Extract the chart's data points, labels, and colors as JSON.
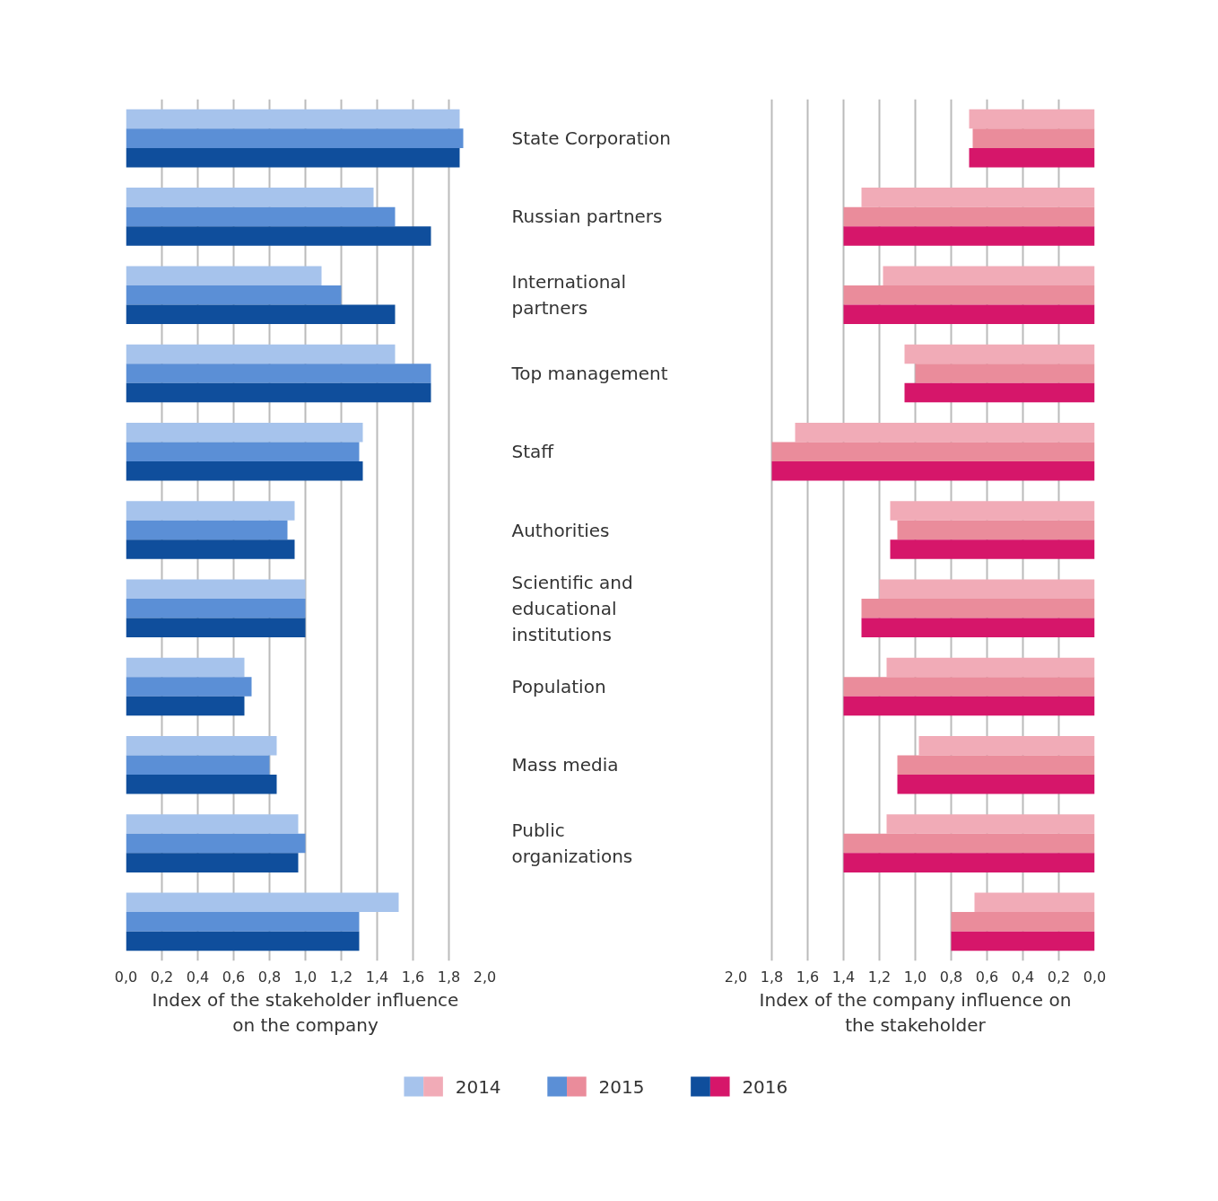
{
  "chart_data": [
    {
      "type": "bar",
      "orientation": "horizontal",
      "xlabel": "Index of the stakeholder influence on the company",
      "categories": [
        "State Corporation",
        "Russian partners",
        "International partners",
        "Top management",
        "Staff",
        "Authorities",
        "Scientific and educational institutions",
        "Population",
        "Mass media",
        "Public organizations",
        null
      ],
      "series": [
        {
          "name": "2014",
          "color": "#a6c3ec",
          "values": [
            1.86,
            1.38,
            1.09,
            1.5,
            1.32,
            0.94,
            1.0,
            0.66,
            0.84,
            0.96,
            1.52
          ]
        },
        {
          "name": "2015",
          "color": "#5b8fd6",
          "values": [
            1.88,
            1.5,
            1.2,
            1.7,
            1.3,
            0.9,
            1.0,
            0.7,
            0.8,
            1.0,
            1.3
          ]
        },
        {
          "name": "2016",
          "color": "#0f4e9c",
          "values": [
            1.86,
            1.7,
            1.5,
            1.7,
            1.32,
            0.94,
            1.0,
            0.66,
            0.84,
            0.96,
            1.3
          ]
        }
      ],
      "xlim": [
        0,
        2.0
      ],
      "xticks": [
        {
          "value": 0,
          "label": "0,0"
        },
        {
          "value": 0.2,
          "label": "0,2"
        },
        {
          "value": 0.4,
          "label": "0,4"
        },
        {
          "value": 0.6,
          "label": "0,6"
        },
        {
          "value": 0.8,
          "label": "0,8"
        },
        {
          "value": 1.0,
          "label": "1,0"
        },
        {
          "value": 1.2,
          "label": "1,2"
        },
        {
          "value": 1.4,
          "label": "1,4"
        },
        {
          "value": 1.6,
          "label": "1,6"
        },
        {
          "value": 1.8,
          "label": "1,8"
        },
        {
          "value": 2.0,
          "label": "2,0"
        }
      ],
      "grid": "x",
      "legend": "bottom"
    },
    {
      "type": "bar",
      "orientation": "horizontal",
      "xlabel": "Index of the company influence on the stakeholder",
      "categories": [
        "State Corporation",
        "Russian partners",
        "International partners",
        "Top management",
        "Staff",
        "Authorities",
        "Scientific and educational institutions",
        "Population",
        "Mass media",
        "Public organizations",
        null
      ],
      "series": [
        {
          "name": "2014",
          "color": "#f1abb7",
          "values": [
            0.7,
            1.3,
            1.18,
            1.06,
            1.67,
            1.14,
            1.2,
            1.16,
            0.98,
            1.16,
            0.67
          ]
        },
        {
          "name": "2015",
          "color": "#ea8c9b",
          "values": [
            0.68,
            1.4,
            1.4,
            1.0,
            1.8,
            1.1,
            1.3,
            1.4,
            1.1,
            1.4,
            0.8
          ]
        },
        {
          "name": "2016",
          "color": "#d6166a",
          "values": [
            0.7,
            1.4,
            1.4,
            1.06,
            1.8,
            1.14,
            1.3,
            1.4,
            1.1,
            1.4,
            0.8
          ]
        }
      ],
      "xlim": [
        2.0,
        0
      ],
      "xticks": [
        {
          "value": 2.0,
          "label": "2,0"
        },
        {
          "value": 1.8,
          "label": "1,8"
        },
        {
          "value": 1.6,
          "label": "1,6"
        },
        {
          "value": 1.4,
          "label": "1,4"
        },
        {
          "value": 1.2,
          "label": "1,2"
        },
        {
          "value": 1.0,
          "label": "1,0"
        },
        {
          "value": 0.8,
          "label": "0,8"
        },
        {
          "value": 0.6,
          "label": "0,6"
        },
        {
          "value": 0.4,
          "label": "0,4"
        },
        {
          "value": 0.2,
          "label": "0,2"
        },
        {
          "value": 0,
          "label": "0,0"
        }
      ],
      "grid": "x",
      "legend": "bottom",
      "tick_labels": "x"
    }
  ]
}
